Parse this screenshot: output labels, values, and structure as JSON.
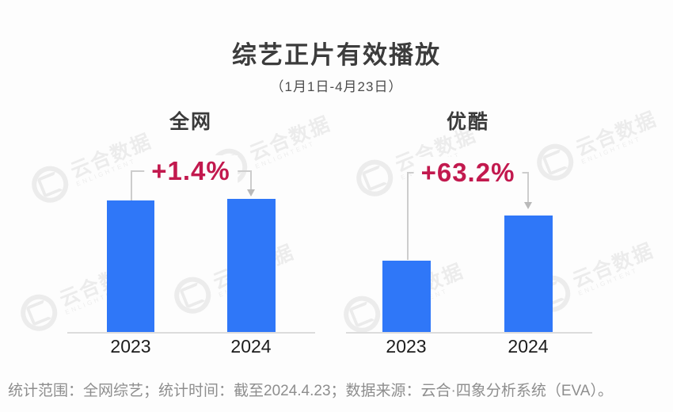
{
  "title": "综艺正片有效播放",
  "subtitle": "（1月1日-4月23日）",
  "chart_data": [
    {
      "type": "bar",
      "group": "全网",
      "categories": [
        "2023",
        "2024"
      ],
      "values": [
        100,
        101.4
      ],
      "unit": "relative index (2023 = 100)",
      "change_label": "+1.4%"
    },
    {
      "type": "bar",
      "group": "优酷",
      "categories": [
        "2023",
        "2024"
      ],
      "values": [
        100,
        163.2
      ],
      "unit": "relative index (2023 = 100)",
      "change_label": "+63.2%"
    }
  ],
  "footer": "统计范围：全网综艺；统计时间：截至2024.4.23；数据来源：云合·四象分析系统（EVA）。",
  "watermark": {
    "text": "云合数据",
    "subtext": "ENLIGHTENT"
  },
  "colors": {
    "bar": "#2F77F8",
    "percent": "#C2194E",
    "axis": "#DCDCDC",
    "bracket": "#CDCDCD"
  }
}
